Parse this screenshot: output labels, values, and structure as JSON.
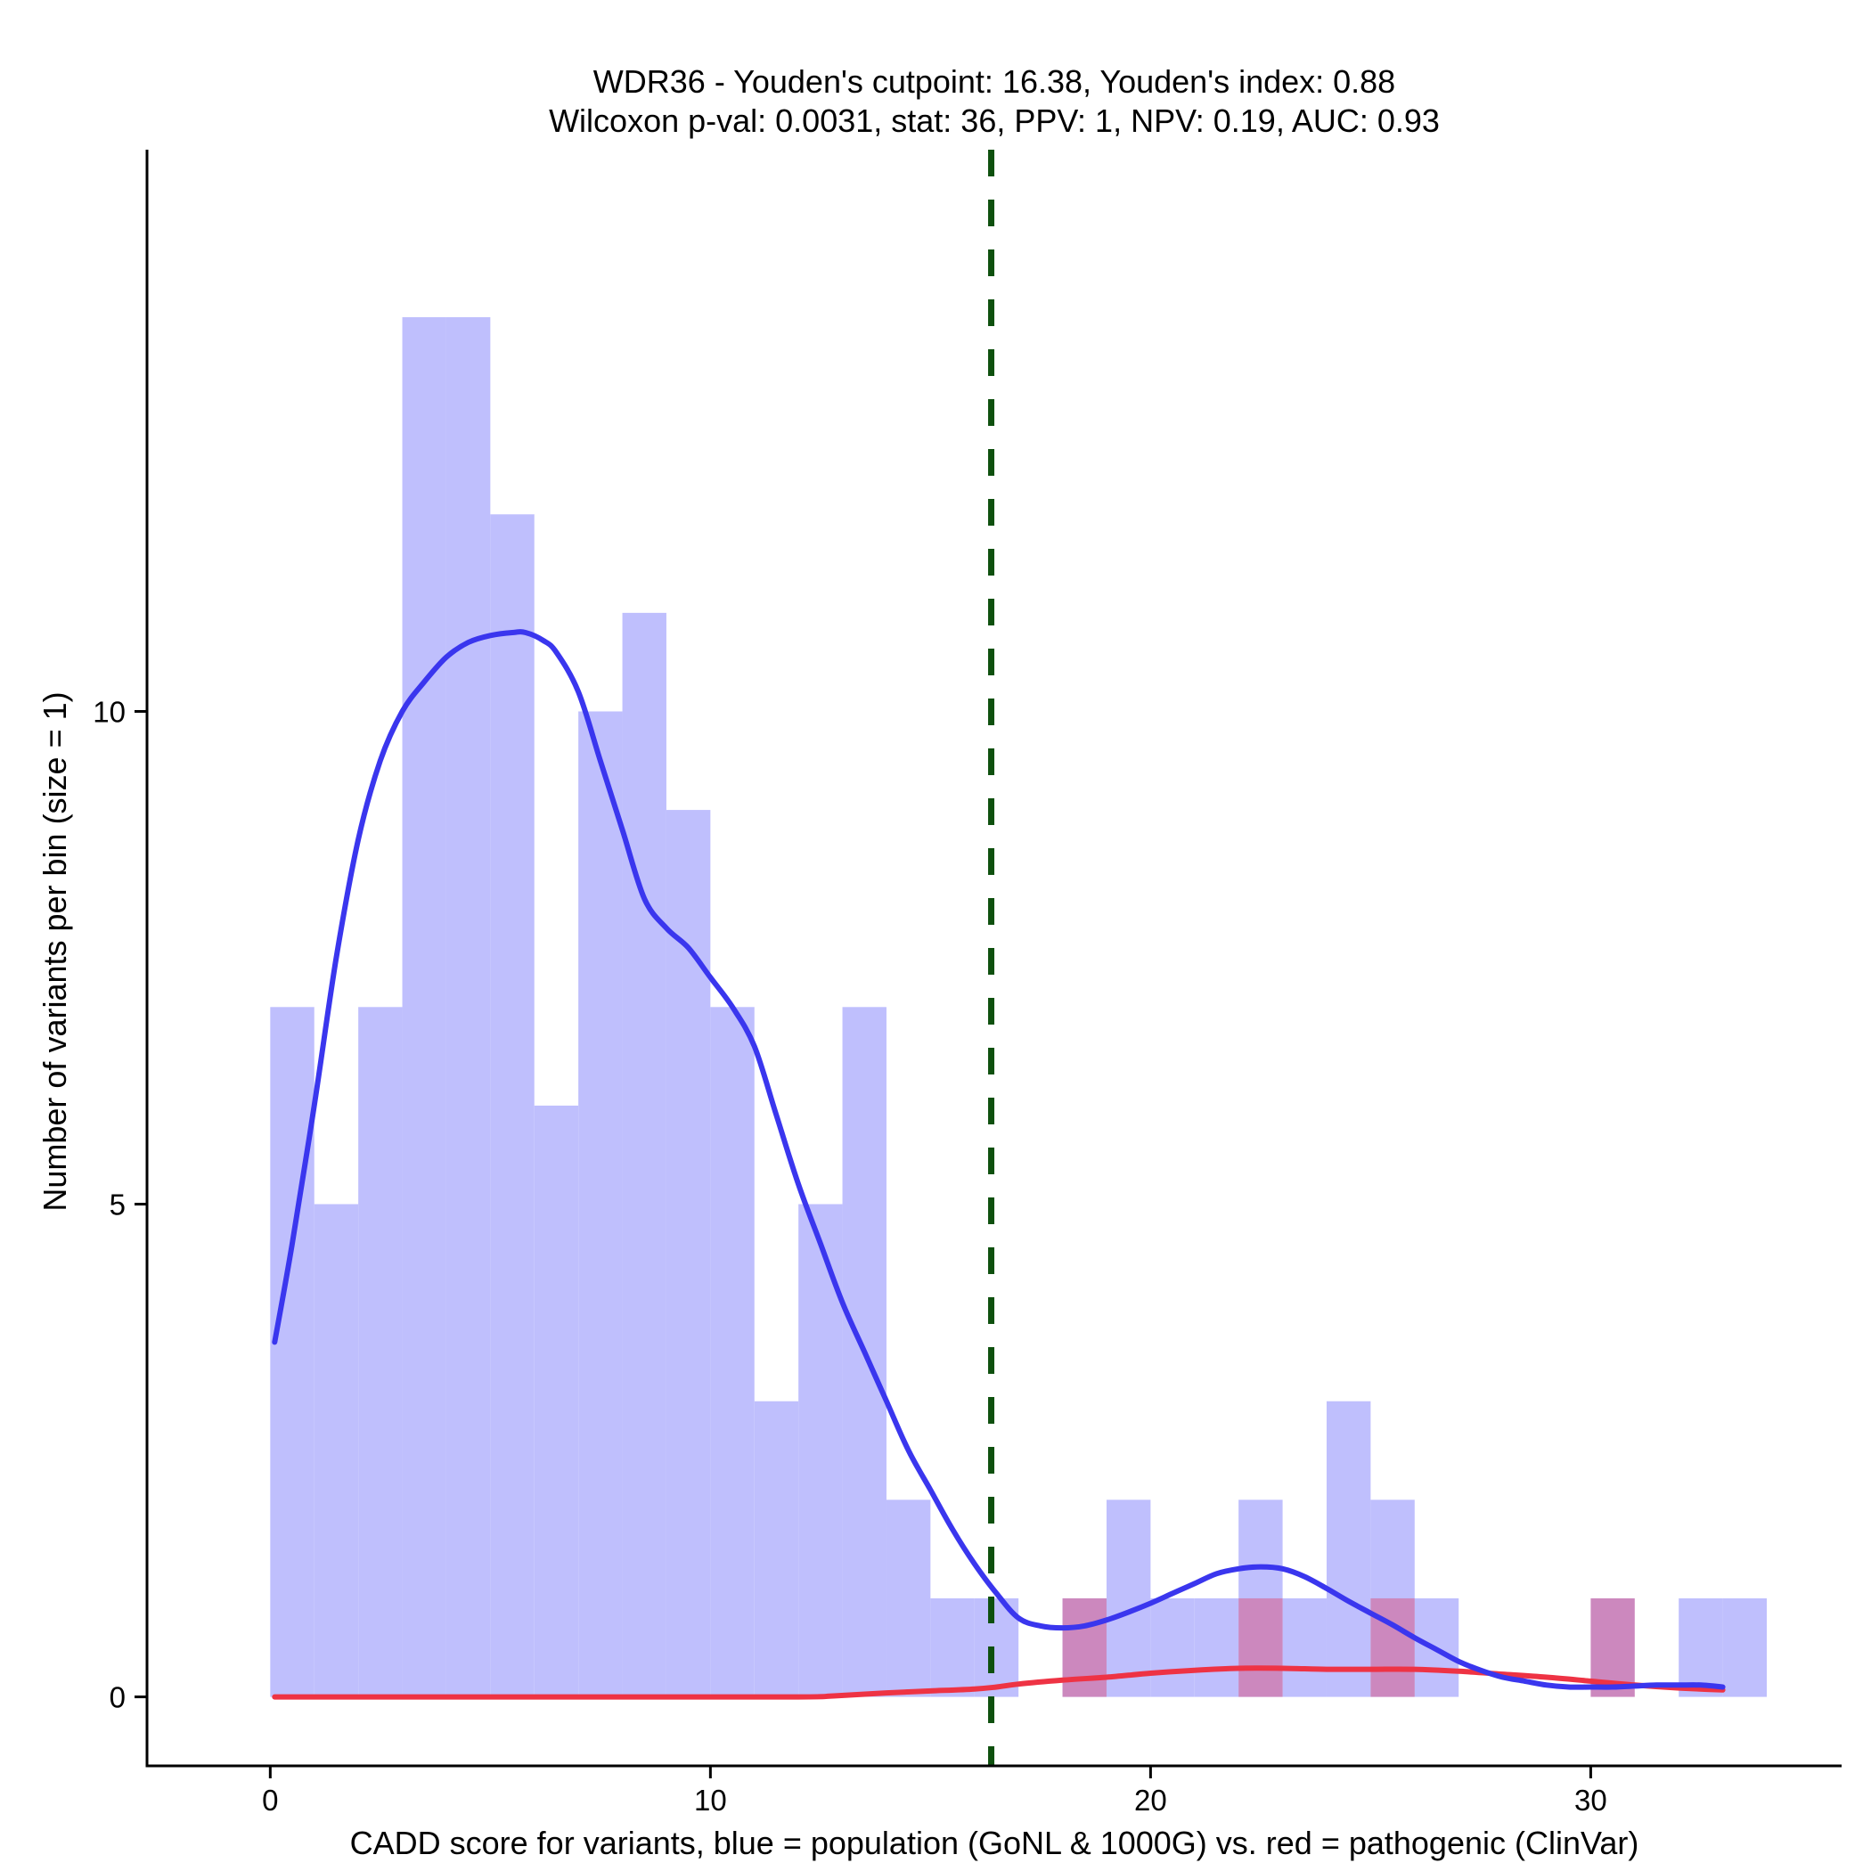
{
  "chart_data": {
    "type": "histogram",
    "title_line1": "WDR36 - Youden's cutpoint: 16.38, Youden's index: 0.88",
    "title_line2": "Wilcoxon p-val: 0.0031, stat: 36, PPV: 1, NPV: 0.19, AUC: 0.93",
    "xlabel": "CADD score for variants, blue = population (GoNL & 1000G) vs. red = pathogenic (ClinVar)",
    "ylabel": "Number of variants per bin (size = 1)",
    "xlim": [
      -2.8,
      35.7
    ],
    "ylim": [
      -0.7,
      15.7
    ],
    "x_ticks": [
      0,
      10,
      20,
      30
    ],
    "x_tick_labels": [
      "0",
      "10",
      "20",
      "30"
    ],
    "y_ticks": [
      0,
      5,
      10
    ],
    "y_tick_labels": [
      "0",
      "5",
      "10"
    ],
    "bin_width": 1,
    "cutpoint": 16.38,
    "colors": {
      "population_bar": "#bfbffd",
      "pathogenic_bar": "#cc88be",
      "population_line": "#3a36ee",
      "pathogenic_line": "#ee3344",
      "cutpoint_line": "#0e500e",
      "axis": "#000000"
    },
    "series": [
      {
        "name": "population (GoNL & 1000G)",
        "bins": [
          [
            0,
            7
          ],
          [
            1,
            5
          ],
          [
            2,
            7
          ],
          [
            3,
            14
          ],
          [
            4,
            14
          ],
          [
            5,
            12
          ],
          [
            6,
            6
          ],
          [
            7,
            10
          ],
          [
            8,
            11
          ],
          [
            9,
            9
          ],
          [
            10,
            7
          ],
          [
            11,
            3
          ],
          [
            12,
            5
          ],
          [
            13,
            7
          ],
          [
            14,
            2
          ],
          [
            15,
            1
          ],
          [
            16,
            1
          ],
          [
            18,
            1
          ],
          [
            19,
            2
          ],
          [
            20,
            1
          ],
          [
            21,
            1
          ],
          [
            22,
            2
          ],
          [
            23,
            1
          ],
          [
            24,
            3
          ],
          [
            25,
            2
          ],
          [
            26,
            1
          ],
          [
            32,
            1
          ],
          [
            33,
            1
          ]
        ]
      },
      {
        "name": "pathogenic (ClinVar)",
        "bins": [
          [
            18,
            1
          ],
          [
            22,
            1
          ],
          [
            25,
            1
          ],
          [
            30,
            1
          ]
        ]
      }
    ],
    "density_lines": [
      {
        "name": "population density",
        "x": [
          0.1,
          0.5,
          1,
          1.5,
          2,
          2.5,
          3,
          3.5,
          4,
          4.5,
          5,
          5.5,
          5.8,
          6.2,
          6.5,
          7,
          7.5,
          8,
          8.5,
          9,
          9.5,
          10,
          10.5,
          11,
          11.5,
          12,
          12.5,
          13,
          13.5,
          14,
          14.5,
          15,
          15.5,
          16,
          16.5,
          17,
          17.5,
          18,
          18.5,
          19,
          19.5,
          20,
          20.5,
          21,
          21.5,
          22,
          22.5,
          23,
          23.5,
          24,
          24.5,
          25,
          25.5,
          26,
          26.5,
          27,
          27.5,
          28,
          28.5,
          29,
          29.5,
          30,
          30.5,
          31,
          31.5,
          32,
          32.5,
          33
        ],
        "y": [
          3.6,
          4.6,
          6.0,
          7.5,
          8.7,
          9.5,
          10.0,
          10.3,
          10.55,
          10.7,
          10.77,
          10.8,
          10.8,
          10.72,
          10.6,
          10.2,
          9.5,
          8.8,
          8.1,
          7.8,
          7.6,
          7.3,
          7.0,
          6.6,
          5.9,
          5.2,
          4.6,
          4.0,
          3.5,
          3.0,
          2.5,
          2.1,
          1.7,
          1.35,
          1.05,
          0.8,
          0.72,
          0.7,
          0.72,
          0.78,
          0.86,
          0.95,
          1.05,
          1.15,
          1.25,
          1.3,
          1.32,
          1.3,
          1.22,
          1.1,
          0.97,
          0.85,
          0.73,
          0.6,
          0.48,
          0.36,
          0.27,
          0.2,
          0.16,
          0.12,
          0.1,
          0.1,
          0.1,
          0.11,
          0.12,
          0.12,
          0.12,
          0.1
        ]
      },
      {
        "name": "pathogenic density",
        "x": [
          0.1,
          4,
          8,
          12,
          12.8,
          14,
          15,
          16,
          16.5,
          17,
          18,
          19,
          20,
          21,
          22,
          23,
          24,
          25,
          26,
          27,
          28,
          29,
          30,
          31,
          32,
          33
        ],
        "y": [
          0,
          0,
          0,
          0,
          0.01,
          0.04,
          0.06,
          0.08,
          0.1,
          0.13,
          0.17,
          0.2,
          0.24,
          0.27,
          0.29,
          0.29,
          0.28,
          0.28,
          0.28,
          0.26,
          0.23,
          0.2,
          0.16,
          0.12,
          0.09,
          0.07
        ]
      }
    ]
  }
}
